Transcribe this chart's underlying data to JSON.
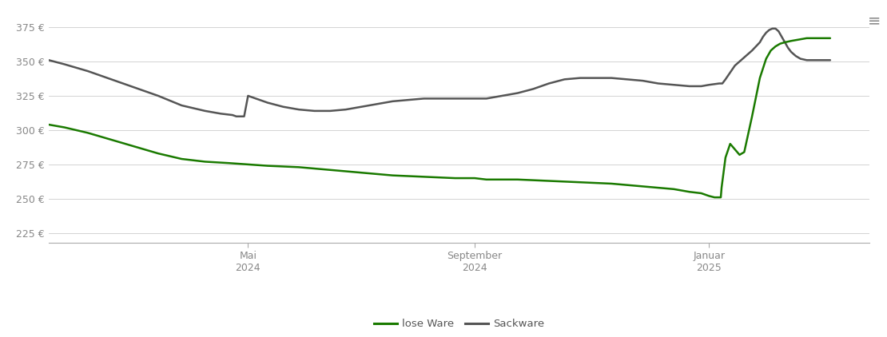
{
  "background_color": "#ffffff",
  "grid_color": "#cccccc",
  "yticks": [
    225,
    250,
    275,
    300,
    325,
    350,
    375
  ],
  "ylim": [
    218,
    385
  ],
  "xlim": [
    0.0,
    1.05
  ],
  "xtick_labels": [
    [
      "Mai\n2024",
      0.255
    ],
    [
      "September\n2024",
      0.545
    ],
    [
      "Januar\n2025",
      0.845
    ]
  ],
  "lose_ware_color": "#1a7a00",
  "sackware_color": "#555555",
  "legend_labels": [
    "lose Ware",
    "Sackware"
  ],
  "lose_ware": [
    [
      0.0,
      304
    ],
    [
      0.02,
      302
    ],
    [
      0.05,
      298
    ],
    [
      0.08,
      293
    ],
    [
      0.11,
      288
    ],
    [
      0.14,
      283
    ],
    [
      0.17,
      279
    ],
    [
      0.2,
      277
    ],
    [
      0.23,
      276
    ],
    [
      0.255,
      275
    ],
    [
      0.28,
      274
    ],
    [
      0.32,
      273
    ],
    [
      0.36,
      271
    ],
    [
      0.4,
      269
    ],
    [
      0.44,
      267
    ],
    [
      0.48,
      266
    ],
    [
      0.52,
      265
    ],
    [
      0.545,
      265
    ],
    [
      0.56,
      264
    ],
    [
      0.6,
      264
    ],
    [
      0.64,
      263
    ],
    [
      0.68,
      262
    ],
    [
      0.72,
      261
    ],
    [
      0.76,
      259
    ],
    [
      0.8,
      257
    ],
    [
      0.82,
      255
    ],
    [
      0.835,
      254
    ],
    [
      0.845,
      252
    ],
    [
      0.852,
      251
    ],
    [
      0.858,
      251
    ],
    [
      0.859,
      251
    ],
    [
      0.86,
      251
    ],
    [
      0.861,
      258
    ],
    [
      0.866,
      280
    ],
    [
      0.872,
      290
    ],
    [
      0.878,
      286
    ],
    [
      0.884,
      282
    ],
    [
      0.89,
      284
    ],
    [
      0.9,
      310
    ],
    [
      0.91,
      338
    ],
    [
      0.918,
      352
    ],
    [
      0.924,
      358
    ],
    [
      0.93,
      361
    ],
    [
      0.936,
      363
    ],
    [
      0.942,
      364
    ],
    [
      0.95,
      365
    ],
    [
      0.96,
      366
    ],
    [
      0.97,
      367
    ],
    [
      0.98,
      367
    ],
    [
      1.0,
      367
    ]
  ],
  "sackware": [
    [
      0.0,
      351
    ],
    [
      0.02,
      348
    ],
    [
      0.05,
      343
    ],
    [
      0.08,
      337
    ],
    [
      0.11,
      331
    ],
    [
      0.14,
      325
    ],
    [
      0.17,
      318
    ],
    [
      0.2,
      314
    ],
    [
      0.22,
      312
    ],
    [
      0.235,
      311
    ],
    [
      0.24,
      310
    ],
    [
      0.248,
      310
    ],
    [
      0.25,
      310
    ],
    [
      0.255,
      325
    ],
    [
      0.265,
      323
    ],
    [
      0.28,
      320
    ],
    [
      0.3,
      317
    ],
    [
      0.32,
      315
    ],
    [
      0.34,
      314
    ],
    [
      0.36,
      314
    ],
    [
      0.38,
      315
    ],
    [
      0.4,
      317
    ],
    [
      0.42,
      319
    ],
    [
      0.44,
      321
    ],
    [
      0.46,
      322
    ],
    [
      0.48,
      323
    ],
    [
      0.5,
      323
    ],
    [
      0.52,
      323
    ],
    [
      0.545,
      323
    ],
    [
      0.56,
      323
    ],
    [
      0.58,
      325
    ],
    [
      0.6,
      327
    ],
    [
      0.62,
      330
    ],
    [
      0.64,
      334
    ],
    [
      0.66,
      337
    ],
    [
      0.68,
      338
    ],
    [
      0.7,
      338
    ],
    [
      0.72,
      338
    ],
    [
      0.74,
      337
    ],
    [
      0.76,
      336
    ],
    [
      0.78,
      334
    ],
    [
      0.8,
      333
    ],
    [
      0.82,
      332
    ],
    [
      0.835,
      332
    ],
    [
      0.845,
      333
    ],
    [
      0.858,
      334
    ],
    [
      0.862,
      334
    ],
    [
      0.866,
      337
    ],
    [
      0.872,
      342
    ],
    [
      0.878,
      347
    ],
    [
      0.884,
      350
    ],
    [
      0.89,
      353
    ],
    [
      0.896,
      356
    ],
    [
      0.9,
      358
    ],
    [
      0.905,
      361
    ],
    [
      0.91,
      364
    ],
    [
      0.914,
      368
    ],
    [
      0.918,
      371
    ],
    [
      0.922,
      373
    ],
    [
      0.926,
      374
    ],
    [
      0.93,
      374
    ],
    [
      0.934,
      372
    ],
    [
      0.938,
      368
    ],
    [
      0.942,
      364
    ],
    [
      0.946,
      360
    ],
    [
      0.95,
      357
    ],
    [
      0.956,
      354
    ],
    [
      0.962,
      352
    ],
    [
      0.97,
      351
    ],
    [
      0.98,
      351
    ],
    [
      1.0,
      351
    ]
  ]
}
